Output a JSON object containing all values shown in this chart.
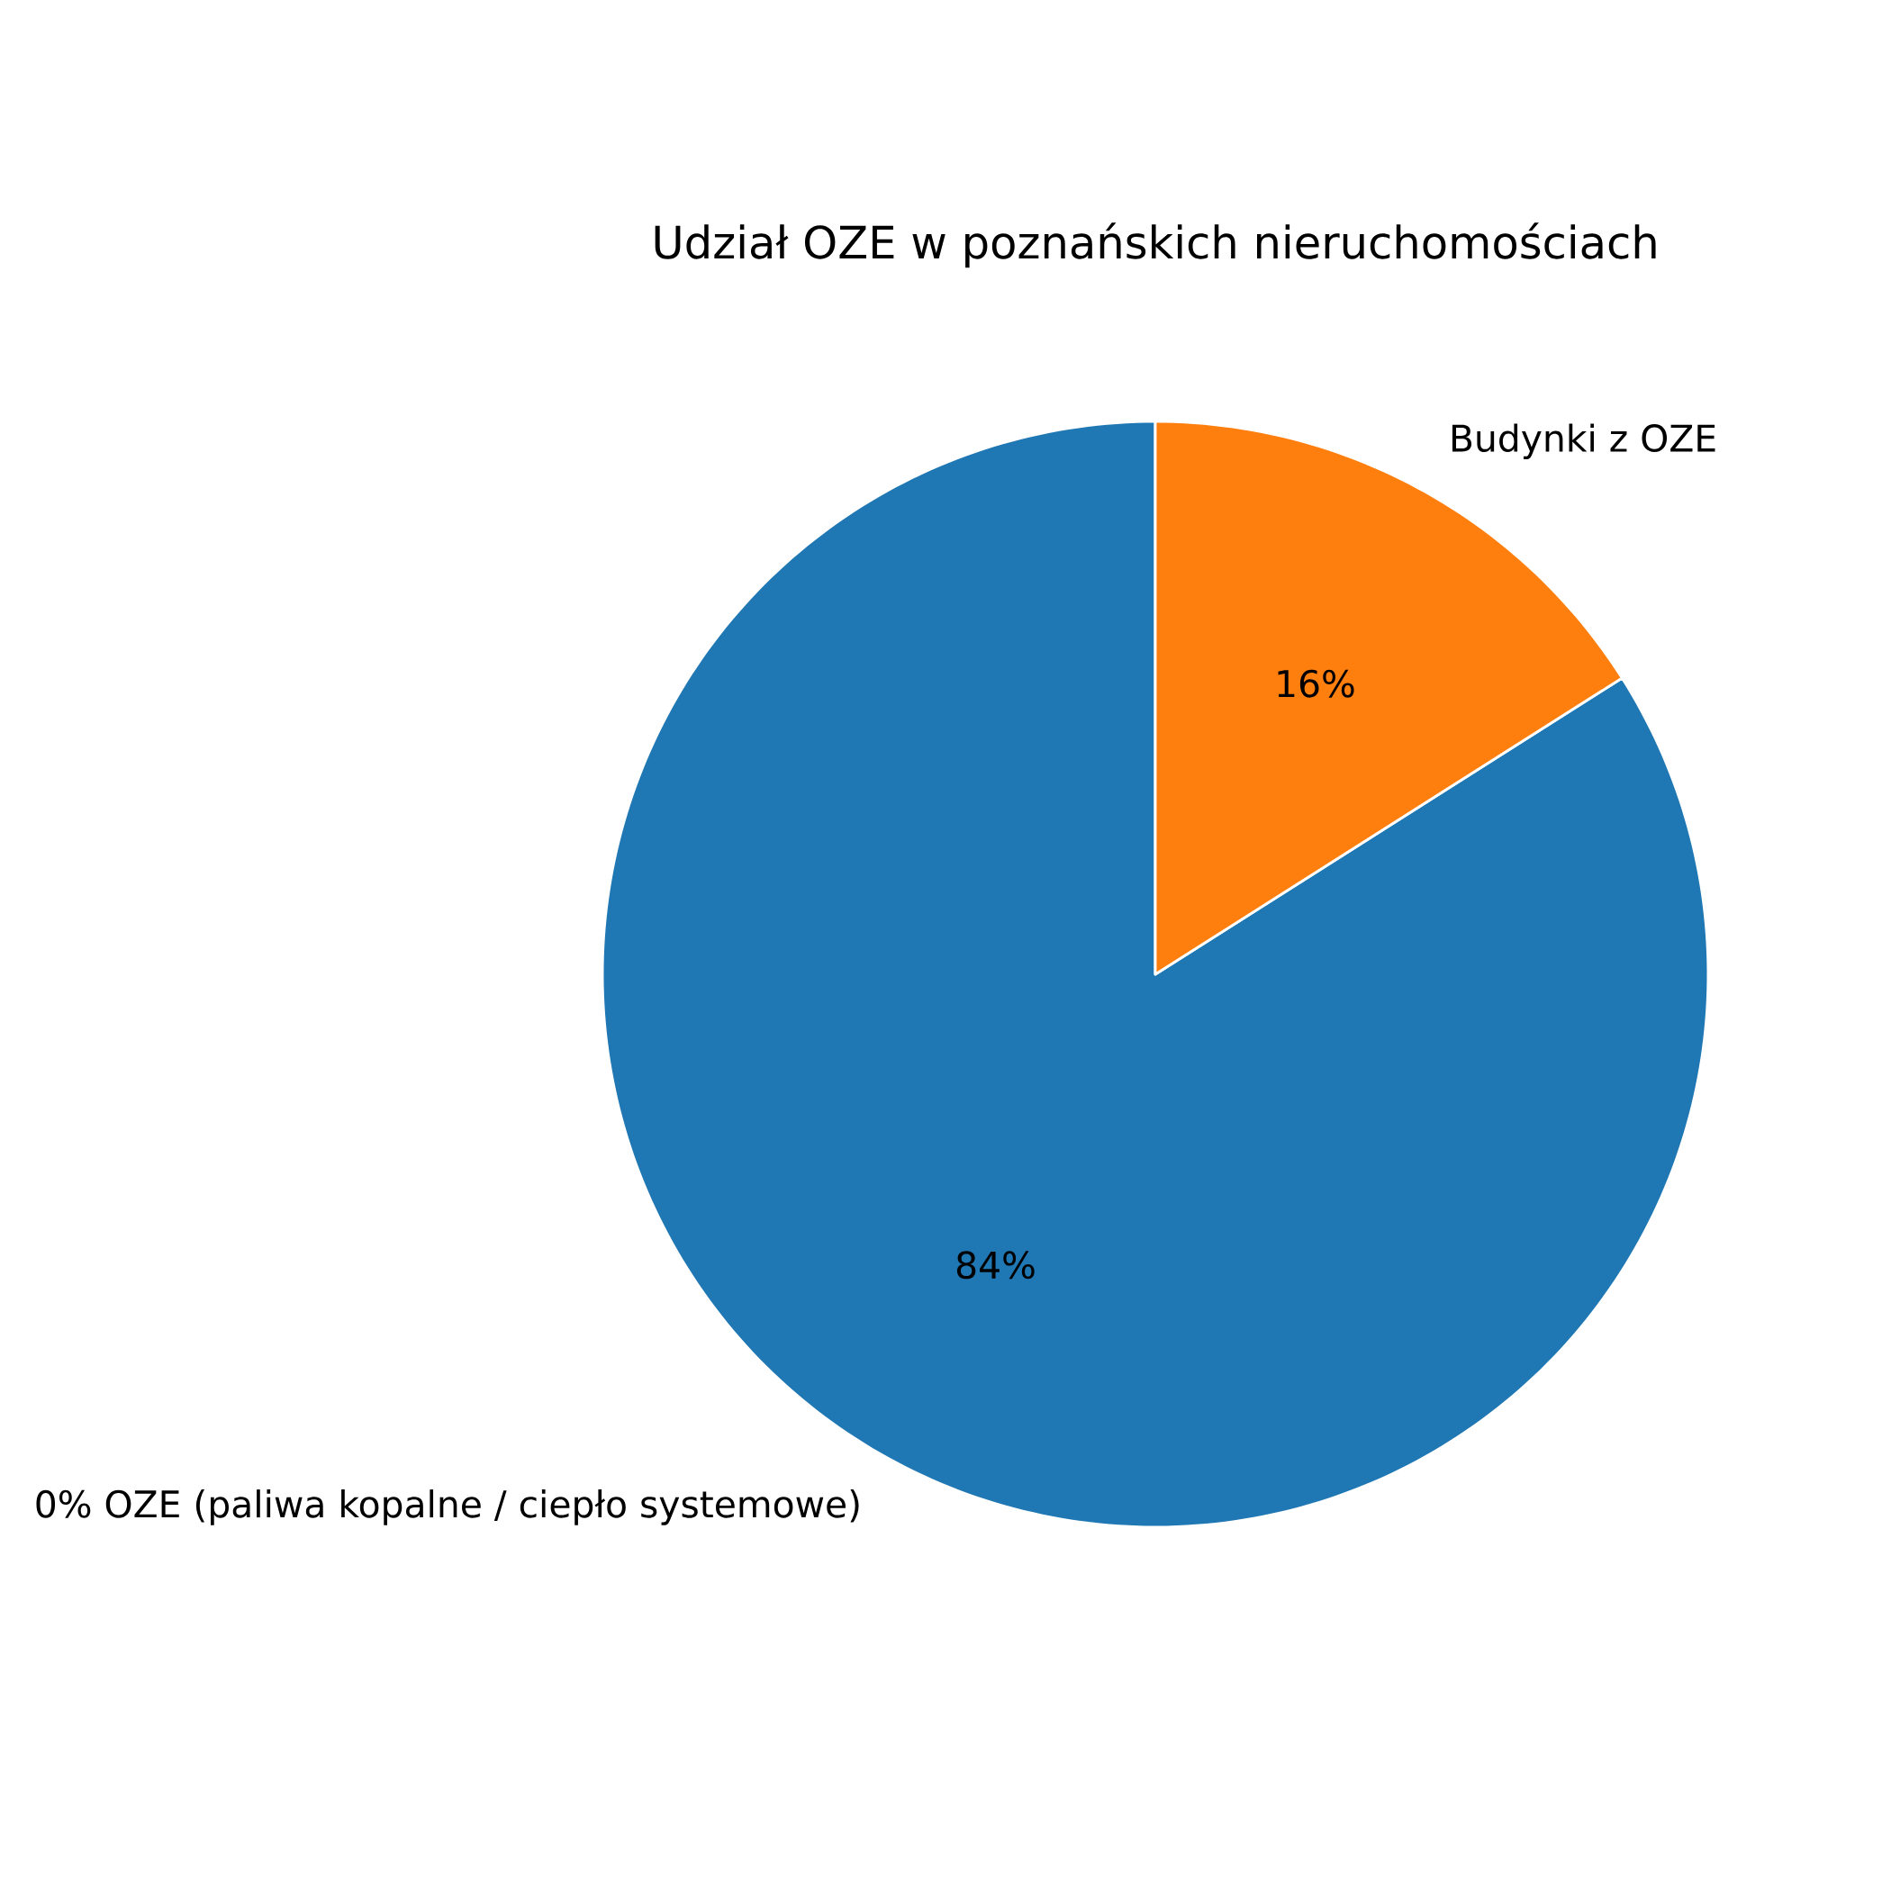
{
  "chart_data": {
    "type": "pie",
    "title": "Udział OZE w poznańskich nieruchomościach",
    "categories": [
      "0% OZE (paliwa kopalne / ciepło systemowe)",
      "Budynki z OZE"
    ],
    "values": [
      84,
      16
    ],
    "colors": [
      "#1f77b4",
      "#ff7f0e"
    ],
    "value_labels": [
      "84%",
      "16%"
    ]
  }
}
